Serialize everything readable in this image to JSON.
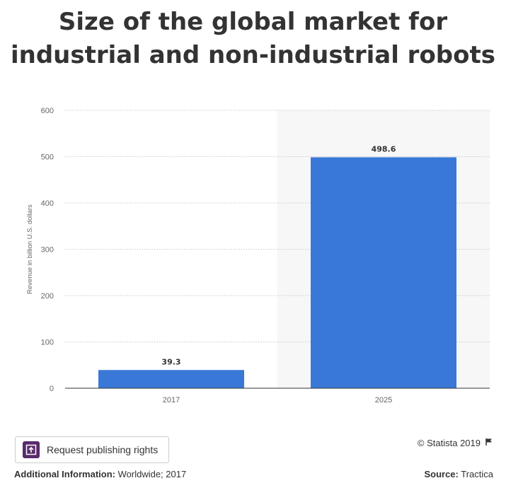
{
  "chart_data": {
    "type": "bar",
    "title": "Size of the global market for industrial and non-industrial robots",
    "categories": [
      "2017",
      "2025"
    ],
    "values": [
      39.3,
      498.6
    ],
    "data_labels": [
      "39.3",
      "498.6"
    ],
    "ylabel": "Revenue in billion U.S. dollars",
    "xlabel": "",
    "ylim": [
      0,
      600
    ],
    "yticks": [
      0,
      100,
      200,
      300,
      400,
      500,
      600
    ],
    "grid": true,
    "highlighted_category": "2025",
    "bar_color": "#3a78d8"
  },
  "title_lines": [
    "Size of the global market for",
    "industrial and non-industrial robots"
  ],
  "request_button": {
    "label": "Request publishing rights",
    "icon": "publish-icon"
  },
  "copyright": {
    "text": "© Statista 2019",
    "icon": "flag-icon"
  },
  "footer": {
    "additional_info_label": "Additional Information:",
    "additional_info_value": "Worldwide; 2017",
    "source_label": "Source:",
    "source_value": "Tractica"
  }
}
